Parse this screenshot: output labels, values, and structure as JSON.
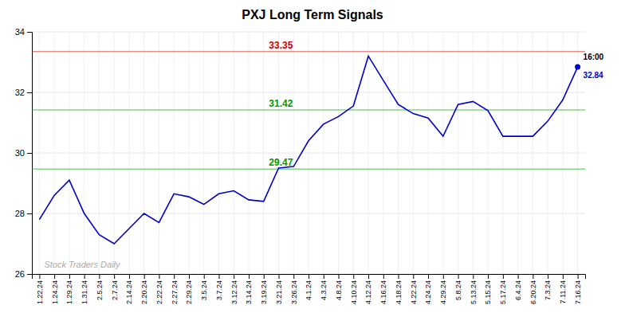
{
  "chart_data": {
    "type": "line",
    "title": "PXJ Long Term Signals",
    "categories": [
      "1.22.24",
      "1.24.24",
      "1.29.24",
      "1.31.24",
      "2.5.24",
      "2.7.24",
      "2.14.24",
      "2.20.24",
      "2.22.24",
      "2.27.24",
      "2.29.24",
      "3.5.24",
      "3.7.24",
      "3.12.24",
      "3.14.24",
      "3.19.24",
      "3.21.24",
      "3.26.24",
      "4.1.24",
      "4.3.24",
      "4.8.24",
      "4.10.24",
      "4.12.24",
      "4.16.24",
      "4.18.24",
      "4.22.24",
      "4.24.24",
      "4.29.24",
      "5.8.24",
      "5.13.24",
      "5.15.24",
      "5.17.24",
      "6.4.24",
      "6.20.24",
      "7.3.24",
      "7.11.24",
      "7.16.24"
    ],
    "values": [
      27.8,
      28.6,
      29.1,
      28.0,
      27.3,
      27.0,
      27.5,
      28.0,
      27.7,
      28.65,
      28.55,
      28.3,
      28.65,
      28.75,
      28.45,
      28.4,
      29.5,
      29.55,
      30.4,
      30.95,
      31.2,
      31.55,
      33.2,
      32.4,
      31.6,
      31.3,
      31.15,
      30.55,
      31.6,
      31.7,
      31.4,
      30.55,
      30.55,
      30.55,
      31.05,
      31.75,
      32.84
    ],
    "color": "#0000cc",
    "ylim": [
      26,
      34
    ],
    "yticks": [
      26,
      28,
      30,
      32,
      34
    ],
    "grid": true,
    "hlines": [
      {
        "value": 33.35,
        "color": "#cc0000"
      },
      {
        "value": 31.42,
        "color": "#009900"
      },
      {
        "value": 29.47,
        "color": "#009900"
      }
    ],
    "annotations": [
      {
        "text": "16:00"
      },
      {
        "text": "Stock Traders Daily",
        "color": "#aaaaaa"
      }
    ]
  }
}
